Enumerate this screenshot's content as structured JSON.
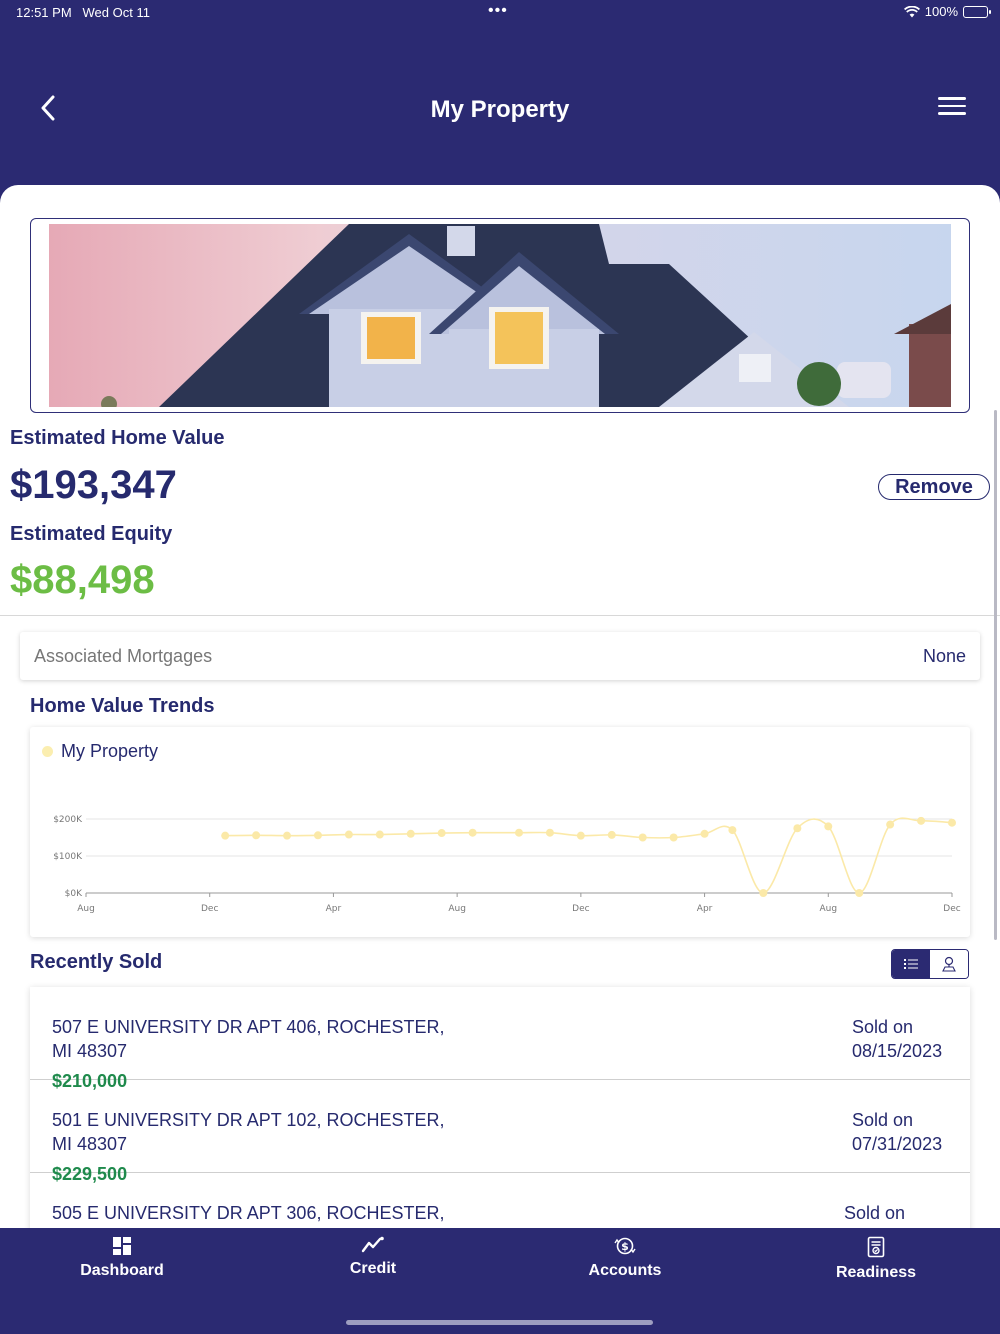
{
  "status_bar": {
    "time": "12:51 PM",
    "date": "Wed Oct 11",
    "battery": "100%"
  },
  "header": {
    "title": "My Property"
  },
  "property": {
    "estimated_home_value_label": "Estimated Home Value",
    "estimated_home_value": "$193,347",
    "remove_label": "Remove",
    "estimated_equity_label": "Estimated Equity",
    "estimated_equity": "$88,498"
  },
  "mortgages": {
    "label": "Associated Mortgages",
    "value": "None"
  },
  "trends": {
    "title": "Home Value Trends",
    "legend": "My Property"
  },
  "chart_data": {
    "type": "line",
    "series": [
      {
        "name": "My Property",
        "color": "#fbe9a8",
        "x": [
          4.5,
          5.5,
          6.5,
          7.5,
          8.5,
          9.5,
          10.5,
          11.5,
          12.5,
          14,
          15,
          16,
          17,
          18,
          19,
          20,
          20.9,
          21.9,
          23,
          24,
          25,
          26,
          27,
          28
        ],
        "values": [
          155000,
          156000,
          155000,
          156000,
          158000,
          158000,
          160000,
          162000,
          163000,
          163000,
          163000,
          155000,
          157000,
          150000,
          150000,
          160000,
          170000,
          0,
          175000,
          180000,
          0,
          185000,
          195000,
          190000
        ]
      }
    ],
    "x_ticks": [
      "Aug",
      "Dec",
      "Apr",
      "Aug",
      "Dec",
      "Apr",
      "Aug",
      "Dec"
    ],
    "y_ticks": [
      "$0K",
      "$100K",
      "$200K"
    ],
    "ylim": [
      0,
      200000
    ],
    "grid": true,
    "legend": "top-left"
  },
  "recently_sold": {
    "title": "Recently Sold",
    "items": [
      {
        "address": "507 E UNIVERSITY DR APT 406, ROCHESTER, MI 48307",
        "price": "$210,000",
        "sold_label": "Sold on",
        "sold_date": "08/15/2023"
      },
      {
        "address": "501 E UNIVERSITY DR APT 102, ROCHESTER, MI 48307",
        "price": "$229,500",
        "sold_label": "Sold on",
        "sold_date": "07/31/2023"
      },
      {
        "address": "505 E UNIVERSITY DR APT 306, ROCHESTER,",
        "price": "",
        "sold_label": "Sold on",
        "sold_date": ""
      }
    ]
  },
  "tabs": [
    {
      "label": "Dashboard",
      "icon": "dashboard-icon"
    },
    {
      "label": "Credit",
      "icon": "trend-icon"
    },
    {
      "label": "Accounts",
      "icon": "accounts-icon"
    },
    {
      "label": "Readiness",
      "icon": "readiness-icon"
    }
  ]
}
